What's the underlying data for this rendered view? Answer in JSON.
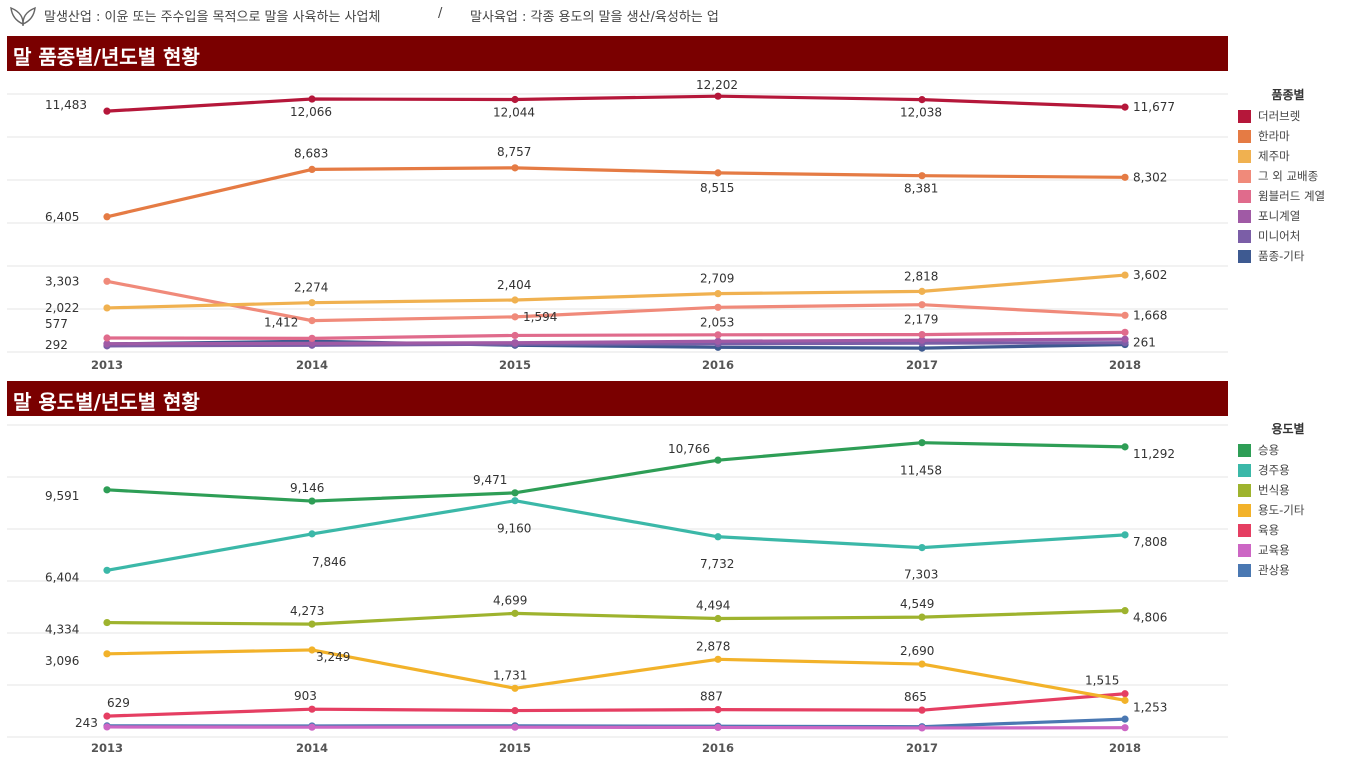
{
  "note": {
    "icon": "leaf-icon",
    "left_text": "말생산업 : 이윤 또는 주수입을 목적으로 말을 사육하는 사업체",
    "separator": "/",
    "right_text": "말사육업 : 각종 용도의 말을 생산/육성하는 업"
  },
  "chart_data": [
    {
      "type": "line",
      "title": "말 품종별/년도별 현황",
      "legend_title": "품종별",
      "legend_position": "right",
      "x": [
        "2013",
        "2014",
        "2015",
        "2016",
        "2017",
        "2018"
      ],
      "grid": true,
      "series": [
        {
          "name": "더러브렛",
          "color": "#b5173a",
          "values": [
            11483,
            12066,
            12044,
            12202,
            12038,
            11677
          ],
          "labels": [
            "11,483",
            "12,066",
            "12,044",
            "12,202",
            "12,038",
            "11,677"
          ]
        },
        {
          "name": "한라마",
          "color": "#e57b44",
          "values": [
            6405,
            8683,
            8757,
            8515,
            8381,
            8302
          ],
          "labels": [
            "6,405",
            "8,683",
            "8,757",
            "8,515",
            "8,381",
            "8,302"
          ]
        },
        {
          "name": "제주마",
          "color": "#f0b150",
          "values": [
            2022,
            2274,
            2404,
            2709,
            2818,
            3602
          ],
          "labels": [
            "2,022",
            "2,274",
            "2,404",
            "2,709",
            "2,818",
            "3,602"
          ]
        },
        {
          "name": "그 외 교배종",
          "color": "#f08a7a",
          "values": [
            3303,
            1412,
            1594,
            2053,
            2179,
            1668
          ],
          "labels": [
            "3,303",
            "1,412",
            "1,594",
            "2,053",
            "2,179",
            "1,668"
          ]
        },
        {
          "name": "윔블러드 계열",
          "color": "#e06b8c",
          "values": [
            577,
            560,
            700,
            730,
            740,
            850
          ],
          "labels": [
            "577",
            "",
            "",
            "",
            "",
            ""
          ]
        },
        {
          "name": "포니계열",
          "color": "#a05aa5",
          "values": [
            300,
            320,
            350,
            420,
            470,
            520
          ],
          "labels": [
            "",
            "",
            "",
            "",
            "",
            ""
          ]
        },
        {
          "name": "미니어처",
          "color": "#7b5ea7",
          "values": [
            200,
            230,
            280,
            300,
            330,
            350
          ],
          "labels": [
            "",
            "",
            "",
            "",
            "",
            ""
          ]
        },
        {
          "name": "품종-기타",
          "color": "#3e5a91",
          "values": [
            292,
            420,
            230,
            130,
            90,
            261
          ],
          "labels": [
            "292",
            "",
            "",
            "",
            "",
            "261"
          ]
        }
      ]
    },
    {
      "type": "line",
      "title": "말 용도별/년도별 현황",
      "legend_title": "용도별",
      "legend_position": "right",
      "x": [
        "2013",
        "2014",
        "2015",
        "2016",
        "2017",
        "2018"
      ],
      "grid": true,
      "series": [
        {
          "name": "승용",
          "color": "#2e9e56",
          "values": [
            9591,
            9146,
            9471,
            10766,
            11458,
            11292
          ],
          "labels": [
            "9,591",
            "9,146",
            "9,471",
            "10,766",
            "11,458",
            "11,292"
          ]
        },
        {
          "name": "경주용",
          "color": "#3bb8a8",
          "values": [
            6404,
            7846,
            9160,
            7732,
            7303,
            7808
          ],
          "labels": [
            "6,404",
            "7,846",
            "9,160",
            "7,732",
            "7,303",
            "7,808"
          ]
        },
        {
          "name": "번식용",
          "color": "#9eb32e",
          "values": [
            4334,
            4273,
            4699,
            4494,
            4549,
            4806
          ],
          "labels": [
            "4,334",
            "4,273",
            "4,699",
            "4,494",
            "4,549",
            "4,806"
          ]
        },
        {
          "name": "용도-기타",
          "color": "#f2b22a",
          "values": [
            3096,
            3249,
            1731,
            2878,
            2690,
            1253
          ],
          "labels": [
            "3,096",
            "3,249",
            "1,731",
            "2,878",
            "2,690",
            "1,253"
          ]
        },
        {
          "name": "육용",
          "color": "#e53e62",
          "values": [
            629,
            903,
            850,
            887,
            865,
            1515
          ],
          "labels": [
            "629",
            "903",
            "",
            "887",
            "865",
            "1,515"
          ]
        },
        {
          "name": "교육용",
          "color": "#cc66c4",
          "values": [
            200,
            190,
            190,
            180,
            160,
            170
          ],
          "labels": [
            "",
            "",
            "",
            "",
            "",
            ""
          ]
        },
        {
          "name": "관상용",
          "color": "#4a78b2",
          "values": [
            243,
            240,
            245,
            230,
            210,
            510
          ],
          "labels": [
            "243",
            "",
            "",
            "",
            "",
            ""
          ]
        }
      ]
    }
  ]
}
